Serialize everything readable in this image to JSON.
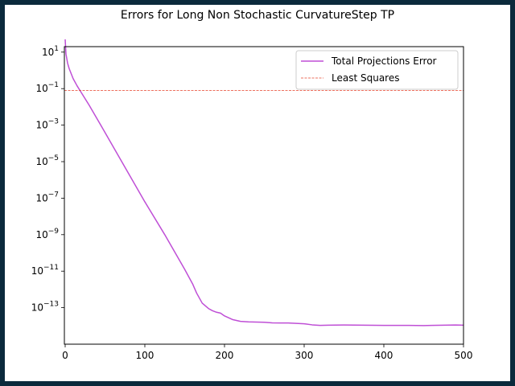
{
  "chart_data": {
    "type": "line",
    "title": "Errors for Long Non Stochastic CurvatureStep TP",
    "xlabel": "",
    "ylabel": "",
    "xlim": [
      -1,
      500
    ],
    "ylim_exponent": [
      -15.0,
      1.3
    ],
    "y_scale": "log",
    "grid": false,
    "legend_placement": "top-right",
    "x_ticks": [
      {
        "value": 0,
        "label": "0"
      },
      {
        "value": 100,
        "label": "100"
      },
      {
        "value": 200,
        "label": "200"
      },
      {
        "value": 300,
        "label": "300"
      },
      {
        "value": 400,
        "label": "400"
      },
      {
        "value": 500,
        "label": "500"
      }
    ],
    "y_ticks": [
      {
        "exponent": 1,
        "label": "10",
        "sup": "1"
      },
      {
        "exponent": -1,
        "label": "10",
        "sup": "−1"
      },
      {
        "exponent": -3,
        "label": "10",
        "sup": "−3"
      },
      {
        "exponent": -5,
        "label": "10",
        "sup": "−5"
      },
      {
        "exponent": -7,
        "label": "10",
        "sup": "−7"
      },
      {
        "exponent": -9,
        "label": "10",
        "sup": "−9"
      },
      {
        "exponent": -11,
        "label": "10",
        "sup": "−11"
      },
      {
        "exponent": -13,
        "label": "10",
        "sup": "−13"
      }
    ],
    "series": [
      {
        "name": "Total Projections Error",
        "color": "#bf4fd6",
        "style": "solid",
        "x": [
          0,
          1,
          3,
          5,
          10,
          15,
          20,
          30,
          50,
          75,
          100,
          125,
          150,
          160,
          165,
          172,
          180,
          185,
          190,
          195,
          200,
          210,
          220,
          230,
          250,
          260,
          270,
          280,
          300,
          310,
          320,
          330,
          350,
          375,
          400,
          425,
          450,
          460,
          475,
          490,
          500
        ],
        "y_exponent": [
          1.7,
          0.9,
          0.4,
          0.1,
          -0.45,
          -0.85,
          -1.2,
          -1.9,
          -3.4,
          -5.3,
          -7.2,
          -9.0,
          -10.9,
          -11.7,
          -12.2,
          -12.75,
          -13.05,
          -13.17,
          -13.25,
          -13.3,
          -13.45,
          -13.65,
          -13.75,
          -13.78,
          -13.8,
          -13.83,
          -13.84,
          -13.84,
          -13.88,
          -13.94,
          -13.97,
          -13.96,
          -13.95,
          -13.96,
          -13.97,
          -13.97,
          -13.98,
          -13.97,
          -13.96,
          -13.95,
          -13.96
        ]
      },
      {
        "name": "Least Squares",
        "color": "#e8432b",
        "style": "dashed",
        "x": [
          -1,
          500
        ],
        "y_exponent": [
          -1.1,
          -1.1
        ]
      }
    ]
  }
}
